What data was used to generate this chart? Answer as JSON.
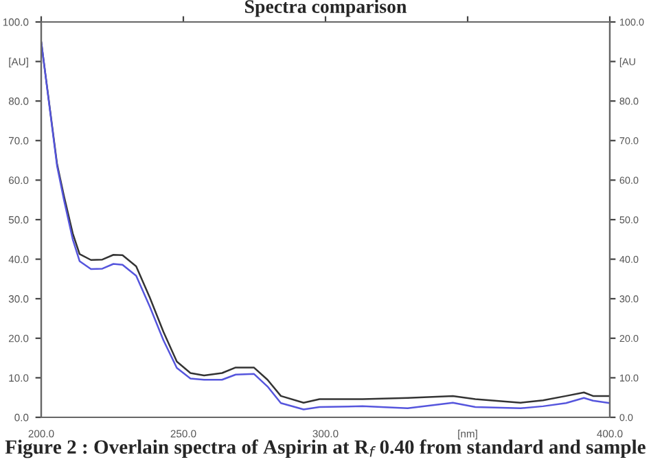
{
  "chart_data": {
    "type": "line",
    "title": "Spectra comparison",
    "annotations": [
      "Figure 2 : Overlain spectra of Aspirin at R$_{f}$ 0.40 from standard and sample"
    ],
    "xlim": [
      200,
      400
    ],
    "xticks": [
      {
        "value": 200,
        "label": "200.0"
      },
      {
        "value": 250,
        "label": "250.0"
      },
      {
        "value": 300,
        "label": "300.0"
      },
      {
        "value": 350,
        "label": "[nm]"
      },
      {
        "value": 400,
        "label": "400.0"
      }
    ],
    "ylim": [
      0,
      100
    ],
    "yticks": [
      {
        "value": 0,
        "label": "0.0"
      },
      {
        "value": 10,
        "label": "10.0"
      },
      {
        "value": 20,
        "label": "20.0"
      },
      {
        "value": 30,
        "label": "30.0"
      },
      {
        "value": 40,
        "label": "40.0"
      },
      {
        "value": 50,
        "label": "50.0"
      },
      {
        "value": 60,
        "label": "60.0"
      },
      {
        "value": 70,
        "label": "70.0"
      },
      {
        "value": 80,
        "label": "80.0"
      },
      {
        "value": 90,
        "label": "[AU]"
      },
      {
        "value": 100,
        "label": "100.0"
      }
    ],
    "y2lim": [
      0,
      100
    ],
    "y2ticks": [
      {
        "value": 0,
        "label": "0.0"
      },
      {
        "value": 10,
        "label": "10.0"
      },
      {
        "value": 20,
        "label": "20.0"
      },
      {
        "value": 30,
        "label": "30.0"
      },
      {
        "value": 40,
        "label": "40.0"
      },
      {
        "value": 50,
        "label": "50.0"
      },
      {
        "value": 60,
        "label": "60.0"
      },
      {
        "value": 70,
        "label": "70.0"
      },
      {
        "value": 80,
        "label": "80.0"
      },
      {
        "value": 90,
        "label": "[AU"
      },
      {
        "value": 100,
        "label": "100.0"
      }
    ],
    "grid": false,
    "legend": false,
    "marker": "none",
    "line_style": "solid",
    "series": [
      {
        "color": "#333333",
        "x": [
          200,
          205.6,
          208,
          211.1,
          213.5,
          217.5,
          221.5,
          225.4,
          228.6,
          233.4,
          238.2,
          243,
          247.7,
          252.5,
          257.3,
          263.6,
          268.4,
          274.8,
          279.6,
          284.3,
          292.3,
          297.9,
          313,
          328.9,
          344.8,
          352.7,
          368.6,
          376.5,
          384.6,
          390.9,
          394.1,
          400
        ],
        "values": [
          95,
          64,
          56,
          46.5,
          41.3,
          39.8,
          39.9,
          41.1,
          41,
          38.2,
          30.3,
          21.6,
          14.1,
          11.2,
          10.6,
          11.2,
          12.6,
          12.6,
          9.5,
          5.4,
          3.7,
          4.6,
          4.6,
          4.9,
          5.4,
          4.6,
          3.7,
          4.3,
          5.4,
          6.3,
          5.4,
          5.4
        ]
      },
      {
        "color": "#5555dd",
        "x": [
          200,
          205.6,
          208,
          211.1,
          213.5,
          217.5,
          221.5,
          225.4,
          228.6,
          233.4,
          238.2,
          243,
          247.7,
          252.5,
          257.3,
          263.6,
          268.4,
          274.8,
          279.6,
          284.3,
          292.3,
          297.9,
          313,
          328.9,
          344.8,
          352.7,
          368.6,
          376.5,
          384.6,
          390.9,
          394.1,
          400
        ],
        "values": [
          95,
          63.5,
          55,
          45,
          39.5,
          37.5,
          37.6,
          38.8,
          38.6,
          35.8,
          28,
          19.5,
          12.5,
          9.8,
          9.5,
          9.5,
          10.8,
          11,
          7.8,
          3.6,
          2,
          2.6,
          2.8,
          2.3,
          3.7,
          2.6,
          2.3,
          2.8,
          3.6,
          4.9,
          4.2,
          3.6
        ]
      }
    ]
  }
}
